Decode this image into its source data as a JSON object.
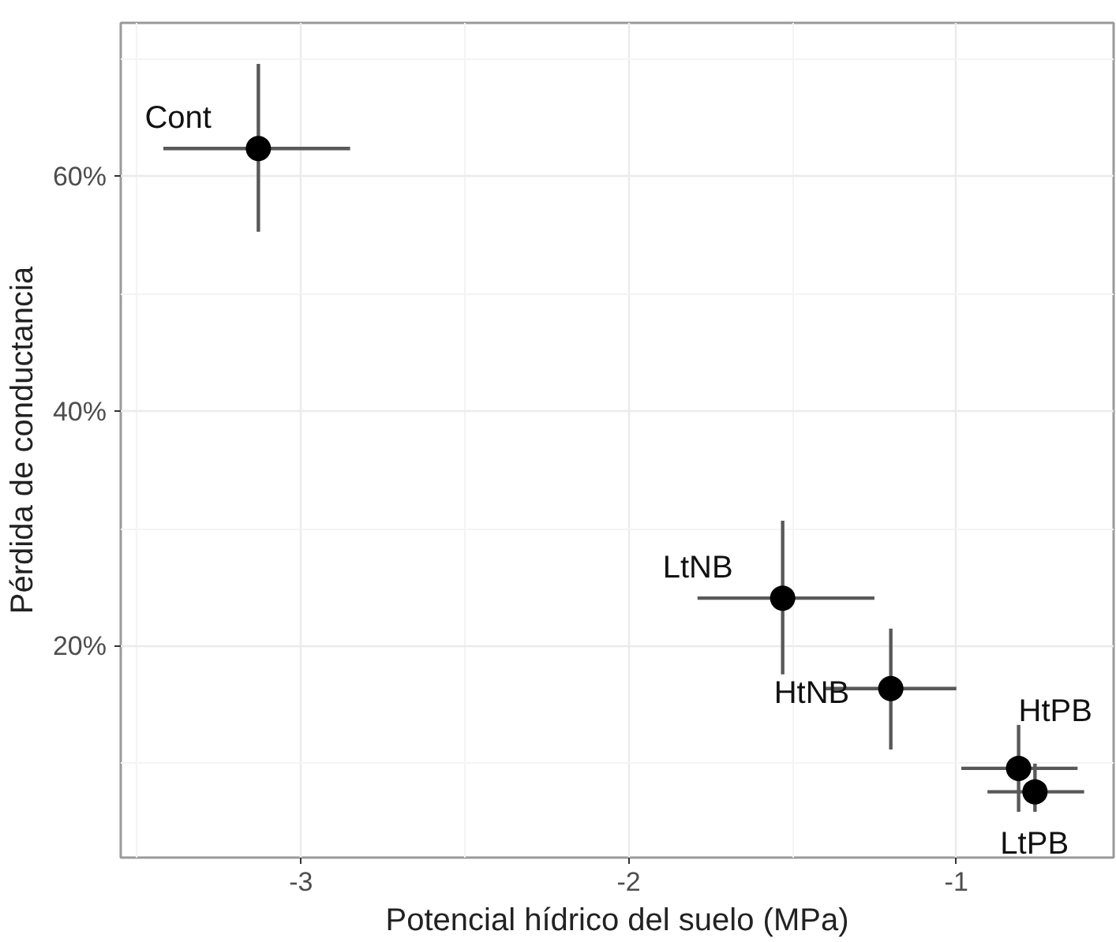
{
  "chart_data": {
    "type": "scatter",
    "xlabel": "Potencial hídrico del suelo (MPa)",
    "ylabel": "Pérdida de conductancia",
    "x": [
      -3.13,
      -1.53,
      -1.2,
      -0.81,
      -0.76
    ],
    "values": [
      62.4,
      24.1,
      16.4,
      9.6,
      7.6
    ],
    "errors": [
      [
        55.3,
        69.6
      ],
      [
        17.6,
        30.7
      ],
      [
        11.2,
        21.5
      ],
      [
        5.9,
        13.3
      ],
      [
        5.9,
        10.0
      ]
    ],
    "xerrors": [
      [
        -3.42,
        -2.85
      ],
      [
        -1.79,
        -1.25
      ],
      [
        -1.4,
        -1.0
      ],
      [
        -0.985,
        -0.63
      ],
      [
        -0.905,
        -0.61
      ]
    ],
    "color": "#000000",
    "marker": "circle",
    "grid": true,
    "xlim": [
      -3.55,
      -0.52
    ],
    "ylim": [
      2.0,
      73.1
    ],
    "xticks": [
      -3,
      -2,
      -1
    ],
    "yticks": [
      {
        "value": 20,
        "label": "20%"
      },
      {
        "value": 40,
        "label": "40%"
      },
      {
        "value": 60,
        "label": "60%"
      }
    ],
    "annotations": [
      {
        "text": "Cont",
        "x": -3.13,
        "y": 62.4
      },
      {
        "text": "LtNB",
        "x": -1.53,
        "y": 24.1
      },
      {
        "text": "HtNB",
        "x": -1.2,
        "y": 16.4
      },
      {
        "text": "HtPB",
        "x": -0.81,
        "y": 9.6
      },
      {
        "text": "LtPB",
        "x": -0.76,
        "y": 7.6
      }
    ]
  }
}
